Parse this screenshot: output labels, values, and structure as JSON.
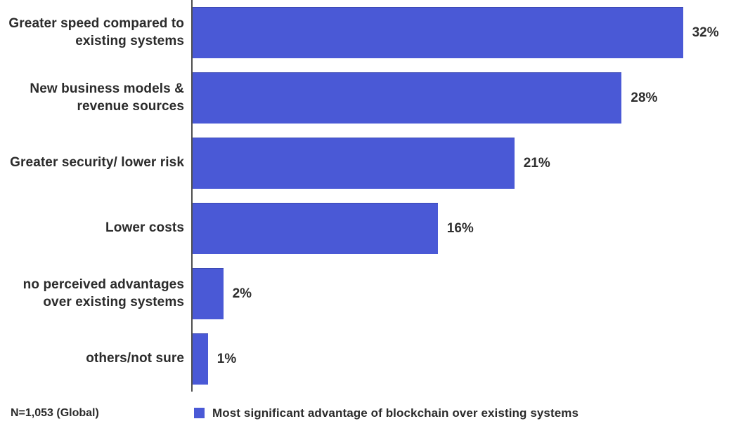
{
  "chart_data": {
    "type": "bar",
    "orientation": "horizontal",
    "title": "",
    "categories": [
      "Greater speed compared to existing systems",
      "New business models & revenue sources",
      "Greater security/ lower risk",
      "Lower costs",
      "no perceived advantages over existing systems",
      "others/not sure"
    ],
    "values": [
      32,
      28,
      21,
      16,
      2,
      1
    ],
    "value_labels": [
      "32%",
      "28%",
      "21%",
      "16%",
      "2%",
      "1%"
    ],
    "unit": "%",
    "xlim": [
      0,
      35
    ],
    "grid": false,
    "bar_color": "#4a59d6",
    "axis_line_color": "#4f4f4f",
    "legend_position": "bottom",
    "legend": {
      "label": "Most significant advantage of blockchain over existing systems",
      "color": "#4a59d6"
    },
    "note": "N=1,053 (Global)"
  }
}
